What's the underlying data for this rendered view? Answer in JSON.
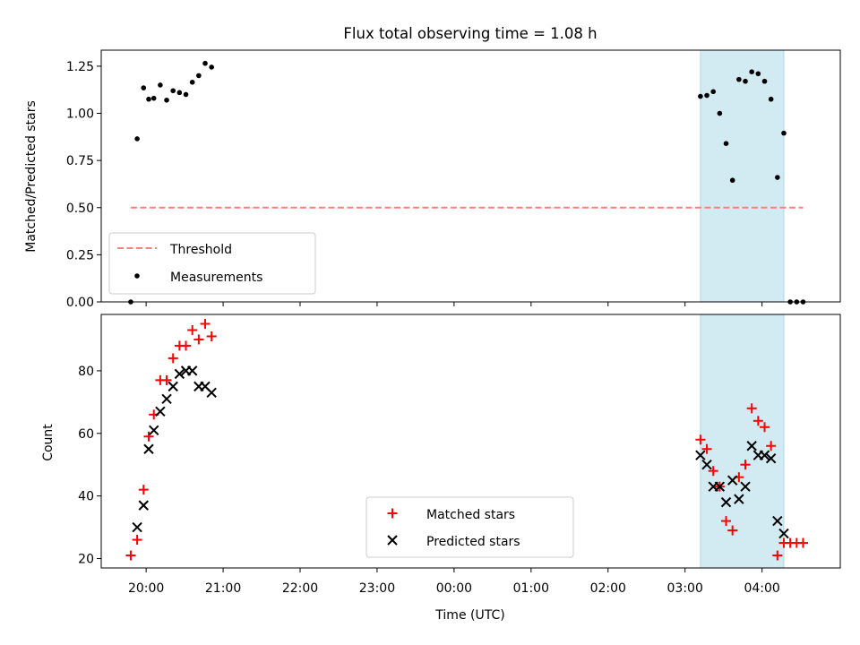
{
  "chart_data": [
    {
      "type": "scatter",
      "title": "Flux total observing time = 1.08 h",
      "ylabel": "Matched/Predicted stars",
      "ylim": [
        0,
        1.335
      ],
      "yticks": [
        0.0,
        0.25,
        0.5,
        0.75,
        1.0,
        1.25
      ],
      "ytick_labels": [
        "0.00",
        "0.25",
        "0.50",
        "0.75",
        "1.00",
        "1.25"
      ],
      "shaded_region": {
        "start": "03:12",
        "end": "04:17",
        "color": "#add8e6"
      },
      "threshold": {
        "name": "Threshold",
        "value": 0.5,
        "from": "19:48",
        "to": "04:32",
        "color": "#ff7f7f"
      },
      "legend_position": "lower-left",
      "series": [
        {
          "name": "Measurements",
          "color": "#000000",
          "points": [
            [
              "19:48",
              0.0
            ],
            [
              "19:53",
              0.865
            ],
            [
              "19:58",
              1.135
            ],
            [
              "20:02",
              1.075
            ],
            [
              "20:06",
              1.08
            ],
            [
              "20:11",
              1.15
            ],
            [
              "20:16",
              1.07
            ],
            [
              "20:21",
              1.12
            ],
            [
              "20:26",
              1.11
            ],
            [
              "20:31",
              1.1
            ],
            [
              "20:36",
              1.165
            ],
            [
              "20:41",
              1.2
            ],
            [
              "20:46",
              1.265
            ],
            [
              "20:51",
              1.245
            ],
            [
              "03:12",
              1.09
            ],
            [
              "03:17",
              1.095
            ],
            [
              "03:22",
              1.115
            ],
            [
              "03:27",
              1.0
            ],
            [
              "03:32",
              0.84
            ],
            [
              "03:37",
              0.645
            ],
            [
              "03:42",
              1.18
            ],
            [
              "03:47",
              1.17
            ],
            [
              "03:52",
              1.22
            ],
            [
              "03:57",
              1.21
            ],
            [
              "04:02",
              1.17
            ],
            [
              "04:07",
              1.075
            ],
            [
              "04:12",
              0.66
            ],
            [
              "04:17",
              0.895
            ],
            [
              "04:22",
              0.0
            ],
            [
              "04:27",
              0.0
            ],
            [
              "04:32",
              0.0
            ]
          ]
        }
      ]
    },
    {
      "type": "scatter",
      "xlabel": "Time (UTC)",
      "ylabel": "Count",
      "ylim": [
        17,
        98
      ],
      "yticks": [
        20,
        40,
        60,
        80
      ],
      "xticks": [
        "20:00",
        "21:00",
        "22:00",
        "23:00",
        "00:00",
        "01:00",
        "02:00",
        "03:00",
        "04:00"
      ],
      "shaded_region": {
        "start": "03:12",
        "end": "04:17",
        "color": "#add8e6"
      },
      "legend_position": "lower-center",
      "series": [
        {
          "name": "Matched stars",
          "marker": "plus",
          "color": "#ff0000",
          "points": [
            [
              "19:48",
              21
            ],
            [
              "19:53",
              26
            ],
            [
              "19:58",
              42
            ],
            [
              "20:02",
              59
            ],
            [
              "20:06",
              66
            ],
            [
              "20:11",
              77
            ],
            [
              "20:16",
              77
            ],
            [
              "20:21",
              84
            ],
            [
              "20:26",
              88
            ],
            [
              "20:31",
              88
            ],
            [
              "20:36",
              93
            ],
            [
              "20:41",
              90
            ],
            [
              "20:46",
              95
            ],
            [
              "20:51",
              91
            ],
            [
              "03:12",
              58
            ],
            [
              "03:17",
              55
            ],
            [
              "03:22",
              48
            ],
            [
              "03:27",
              43
            ],
            [
              "03:32",
              32
            ],
            [
              "03:37",
              29
            ],
            [
              "03:42",
              46
            ],
            [
              "03:47",
              50
            ],
            [
              "03:52",
              68
            ],
            [
              "03:57",
              64
            ],
            [
              "04:02",
              62
            ],
            [
              "04:07",
              56
            ],
            [
              "04:12",
              21
            ],
            [
              "04:17",
              25
            ],
            [
              "04:22",
              25
            ],
            [
              "04:27",
              25
            ],
            [
              "04:32",
              25
            ]
          ]
        },
        {
          "name": "Predicted stars",
          "marker": "x",
          "color": "#000000",
          "points": [
            [
              "19:53",
              30
            ],
            [
              "19:58",
              37
            ],
            [
              "20:02",
              55
            ],
            [
              "20:06",
              61
            ],
            [
              "20:11",
              67
            ],
            [
              "20:16",
              71
            ],
            [
              "20:21",
              75
            ],
            [
              "20:26",
              79
            ],
            [
              "20:31",
              80
            ],
            [
              "20:36",
              80
            ],
            [
              "20:41",
              75
            ],
            [
              "20:46",
              75
            ],
            [
              "20:51",
              73
            ],
            [
              "03:12",
              53
            ],
            [
              "03:17",
              50
            ],
            [
              "03:22",
              43
            ],
            [
              "03:27",
              43
            ],
            [
              "03:32",
              38
            ],
            [
              "03:37",
              45
            ],
            [
              "03:42",
              39
            ],
            [
              "03:47",
              43
            ],
            [
              "03:52",
              56
            ],
            [
              "03:57",
              53
            ],
            [
              "04:02",
              53
            ],
            [
              "04:07",
              52
            ],
            [
              "04:12",
              32
            ],
            [
              "04:17",
              28
            ]
          ]
        }
      ]
    }
  ]
}
